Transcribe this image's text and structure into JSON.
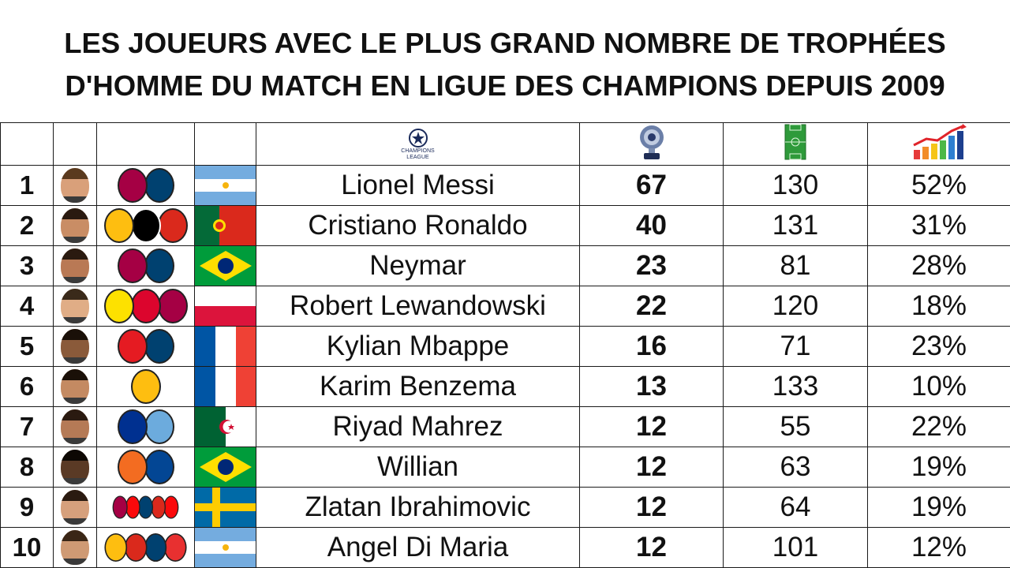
{
  "title_line1": "LES JOUEURS AVEC LE PLUS GRAND NOMBRE DE TROPHÉES",
  "title_line2": "D'HOMME DU MATCH EN LIGUE DES CHAMPIONS DEPUIS 2009",
  "header": {
    "competition_logo_text": "CHAMPIONS LEAGUE",
    "icons": [
      "champions-league-logo-icon",
      "trophy-icon",
      "football-pitch-icon",
      "growth-chart-icon"
    ]
  },
  "rows": [
    {
      "rank": "1",
      "name": "Lionel Messi",
      "motm": "67",
      "matches": "130",
      "pct": "52%",
      "clubs": [
        "#a50044",
        "#004170"
      ],
      "flag": "argentina"
    },
    {
      "rank": "2",
      "name": "Cristiano Ronaldo",
      "motm": "40",
      "matches": "131",
      "pct": "31%",
      "clubs": [
        "#febe10",
        "#000000",
        "#da291c"
      ],
      "flag": "portugal"
    },
    {
      "rank": "3",
      "name": "Neymar",
      "motm": "23",
      "matches": "81",
      "pct": "28%",
      "clubs": [
        "#a50044",
        "#004170"
      ],
      "flag": "brazil"
    },
    {
      "rank": "4",
      "name": "Robert Lewandowski",
      "motm": "22",
      "matches": "120",
      "pct": "18%",
      "clubs": [
        "#fde100",
        "#dc052d",
        "#a50044"
      ],
      "flag": "poland"
    },
    {
      "rank": "5",
      "name": "Kylian Mbappe",
      "motm": "16",
      "matches": "71",
      "pct": "23%",
      "clubs": [
        "#e51b22",
        "#004170"
      ],
      "flag": "france"
    },
    {
      "rank": "6",
      "name": "Karim Benzema",
      "motm": "13",
      "matches": "133",
      "pct": "10%",
      "clubs": [
        "#febe10"
      ],
      "flag": "france"
    },
    {
      "rank": "7",
      "name": "Riyad Mahrez",
      "motm": "12",
      "matches": "55",
      "pct": "22%",
      "clubs": [
        "#003090",
        "#6cabdd"
      ],
      "flag": "algeria"
    },
    {
      "rank": "8",
      "name": "Willian",
      "motm": "12",
      "matches": "63",
      "pct": "19%",
      "clubs": [
        "#f36c21",
        "#034694"
      ],
      "flag": "brazil"
    },
    {
      "rank": "9",
      "name": "Zlatan Ibrahimovic",
      "motm": "12",
      "matches": "64",
      "pct": "19%",
      "clubs": [
        "#a50044",
        "#fb090b",
        "#004170",
        "#da291c",
        "#fb090b"
      ],
      "flag": "sweden"
    },
    {
      "rank": "10",
      "name": "Angel Di Maria",
      "motm": "12",
      "matches": "101",
      "pct": "12%",
      "clubs": [
        "#febe10",
        "#da291c",
        "#004170",
        "#e83030"
      ],
      "flag": "argentina"
    }
  ]
}
